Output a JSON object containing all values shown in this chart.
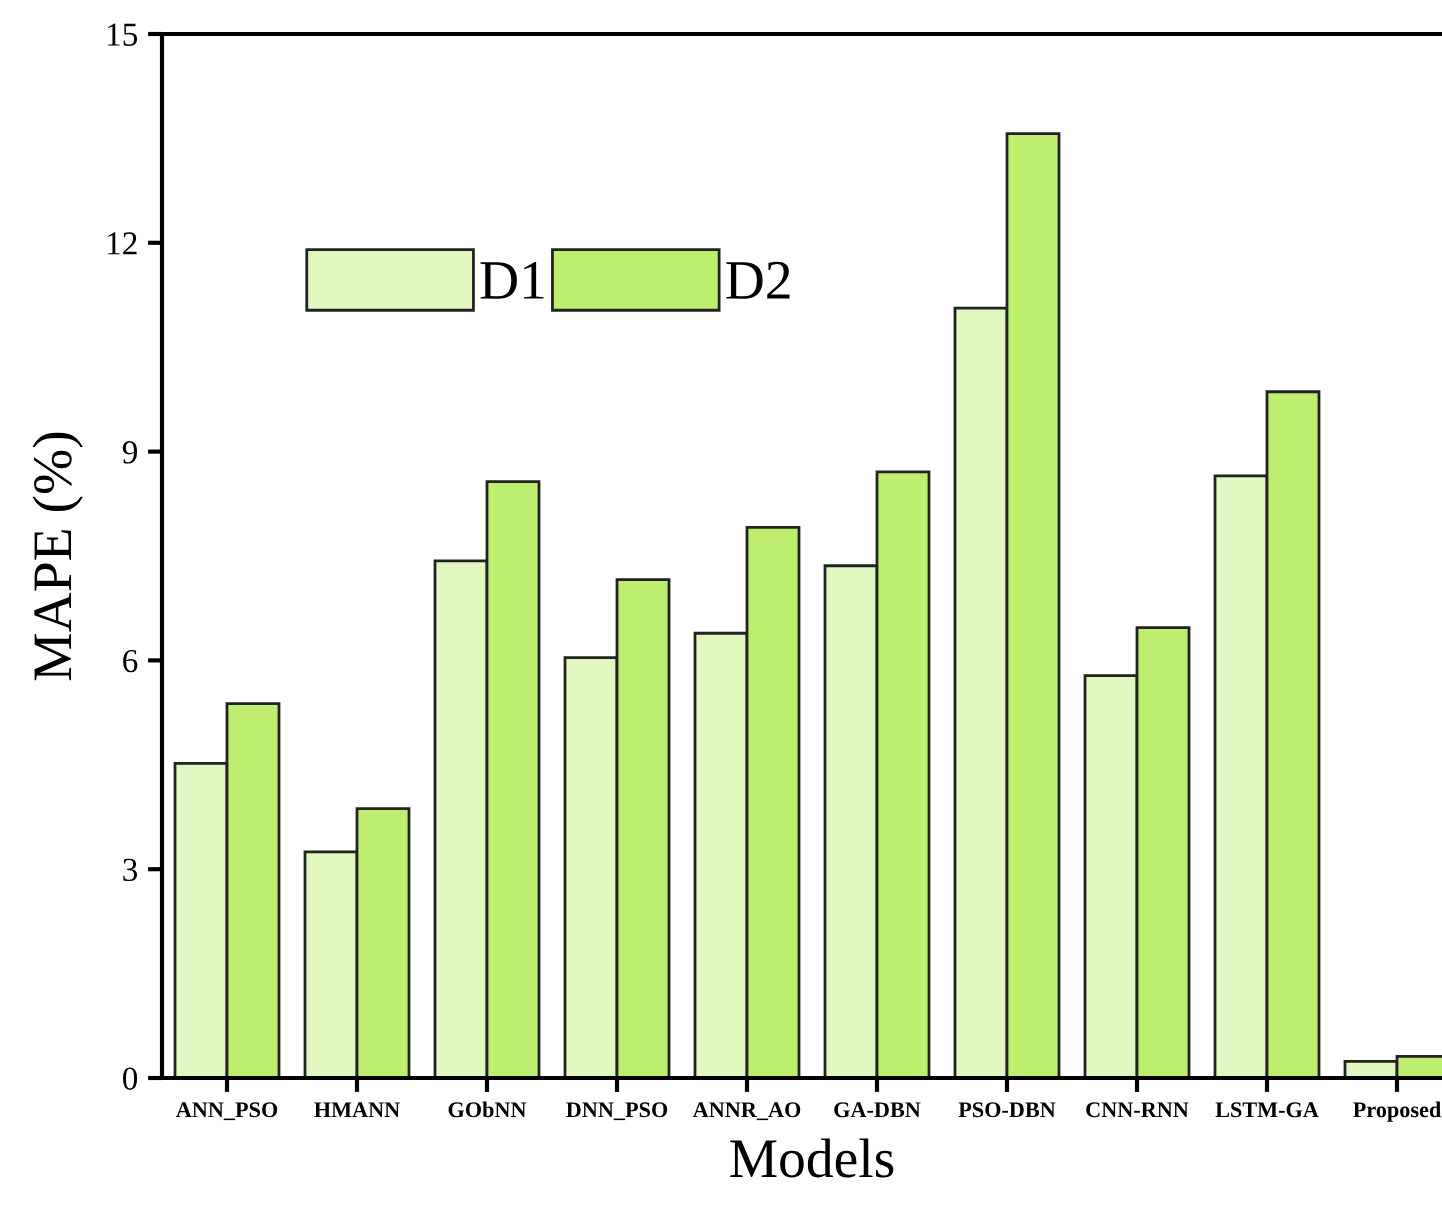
{
  "chart_data": {
    "type": "bar",
    "xlabel": "Models",
    "ylabel": "MAPE (%)",
    "categories": [
      "ANN_PSO",
      "HMANN",
      "GObNN",
      "DNN_PSO",
      "ANNR_AO",
      "GA-DBN",
      "PSO-DBN",
      "CNN-RNN",
      "LSTM-GA",
      "Proposed"
    ],
    "series": [
      {
        "name": "D1",
        "color": "#e0f7c0",
        "values": [
          4.52,
          3.25,
          7.43,
          6.04,
          6.39,
          7.36,
          11.06,
          5.78,
          8.65,
          0.24
        ]
      },
      {
        "name": "D2",
        "color": "#bdee6f",
        "values": [
          5.38,
          3.87,
          8.57,
          7.16,
          7.91,
          8.71,
          13.57,
          6.47,
          9.86,
          0.31
        ]
      }
    ],
    "ylim": [
      0,
      15
    ],
    "yticks": [
      0,
      3,
      6,
      9,
      12,
      15
    ],
    "grid": false,
    "legend": "top left"
  }
}
